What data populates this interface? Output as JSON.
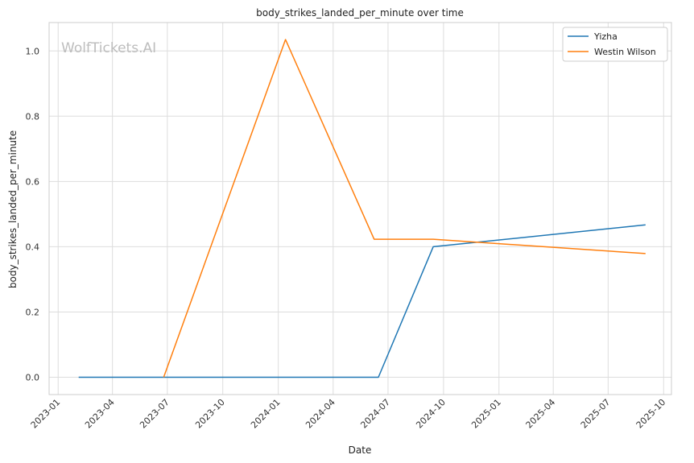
{
  "chart_data": {
    "type": "line",
    "title": "body_strikes_landed_per_minute over time",
    "xlabel": "Date",
    "ylabel": "body_strikes_landed_per_minute",
    "watermark": "WolfTickets.AI",
    "x_ticks": [
      "2023-01",
      "2023-04",
      "2023-07",
      "2023-10",
      "2024-01",
      "2024-04",
      "2024-07",
      "2024-10",
      "2025-01",
      "2025-04",
      "2025-07",
      "2025-10"
    ],
    "y_ticks": [
      "0.0",
      "0.2",
      "0.4",
      "0.6",
      "0.8",
      "1.0"
    ],
    "xlim": [
      "2022-12-17",
      "2025-10-14"
    ],
    "ylim": [
      -0.053,
      1.087
    ],
    "grid": true,
    "legend_position": "top-right",
    "series": [
      {
        "name": "Yizha",
        "color": "#1f77b4",
        "points": [
          {
            "x": "2023-02-04",
            "y": 0.0
          },
          {
            "x": "2024-06-15",
            "y": 0.0
          },
          {
            "x": "2024-09-14",
            "y": 0.4
          },
          {
            "x": "2025-09-01",
            "y": 0.467
          }
        ]
      },
      {
        "name": "Westin Wilson",
        "color": "#ff7f0e",
        "points": [
          {
            "x": "2023-06-25",
            "y": 0.0
          },
          {
            "x": "2024-01-13",
            "y": 1.035
          },
          {
            "x": "2024-06-08",
            "y": 0.423
          },
          {
            "x": "2024-09-14",
            "y": 0.423
          },
          {
            "x": "2025-09-01",
            "y": 0.379
          }
        ]
      }
    ]
  }
}
